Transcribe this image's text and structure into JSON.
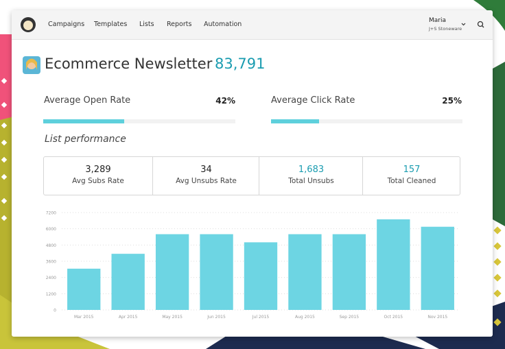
{
  "nav": {
    "items": [
      "Campaigns",
      "Templates",
      "Lists",
      "Reports",
      "Automation"
    ],
    "user_name": "Maria",
    "user_company": "J+S Stoneware"
  },
  "header": {
    "title": "Ecommerce Newsletter",
    "count": "83,791"
  },
  "rates": [
    {
      "label": "Average Open Rate",
      "value": 42,
      "value_label": "42%"
    },
    {
      "label": "Average Click Rate",
      "value": 25,
      "value_label": "25%"
    }
  ],
  "section_title": "List performance",
  "stats": [
    {
      "value": "3,289",
      "label": "Avg Subs Rate"
    },
    {
      "value": "34",
      "label": "Avg Unsubs Rate"
    },
    {
      "value": "1,683",
      "label": "Total Unsubs"
    },
    {
      "value": "157",
      "label": "Total Cleaned"
    }
  ],
  "chart_data": {
    "type": "bar",
    "categories": [
      "Mar 2015",
      "Apr 2015",
      "May 2015",
      "Jun 2015",
      "Jul 2015",
      "Aug 2015",
      "Sep 2015",
      "Oct 2015",
      "Nov 2015"
    ],
    "values": [
      3050,
      4150,
      5600,
      5600,
      5000,
      5600,
      5600,
      6700,
      6150
    ],
    "color": "#6dd5e3",
    "ylim": [
      0,
      7200
    ],
    "yticks": [
      0,
      1200,
      2400,
      3600,
      4800,
      6000,
      7200
    ],
    "grid": true
  }
}
